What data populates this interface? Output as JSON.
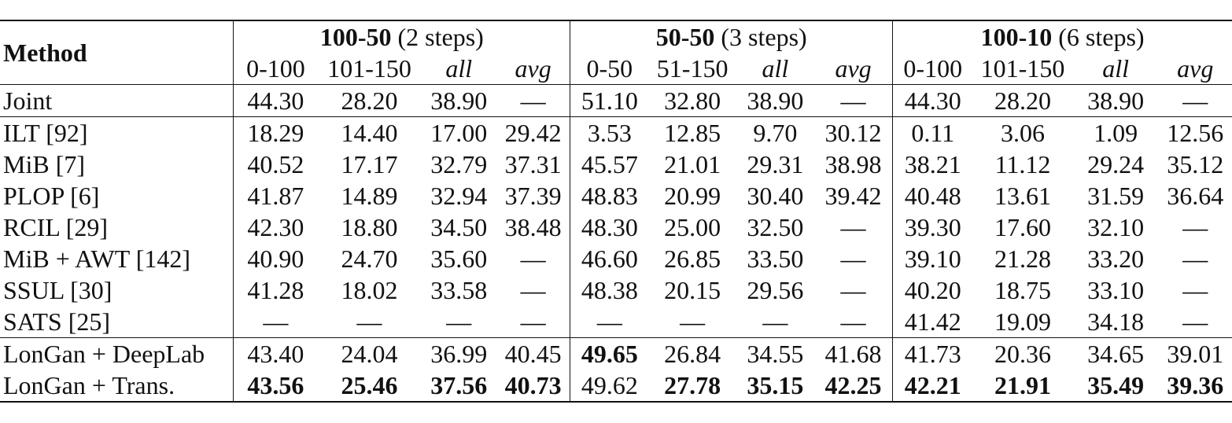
{
  "table": {
    "method_header": "Method",
    "groups": [
      {
        "bold": "100-50",
        "rest": " (2 steps)",
        "subheaders": [
          "0-100",
          "101-150",
          "all",
          "avg"
        ]
      },
      {
        "bold": "50-50",
        "rest": " (3 steps)",
        "subheaders": [
          "0-50",
          "51-150",
          "all",
          "avg"
        ]
      },
      {
        "bold": "100-10",
        "rest": " (6 steps)",
        "subheaders": [
          "0-100",
          "101-150",
          "all",
          "avg"
        ]
      }
    ],
    "rows": [
      {
        "method": "Joint",
        "values": [
          "44.30",
          "28.20",
          "38.90",
          "—",
          "51.10",
          "32.80",
          "38.90",
          "—",
          "44.30",
          "28.20",
          "38.90",
          "—"
        ]
      },
      {
        "method": "ILT [92]",
        "values": [
          "18.29",
          "14.40",
          "17.00",
          "29.42",
          "3.53",
          "12.85",
          "9.70",
          "30.12",
          "0.11",
          "3.06",
          "1.09",
          "12.56"
        ]
      },
      {
        "method": "MiB [7]",
        "values": [
          "40.52",
          "17.17",
          "32.79",
          "37.31",
          "45.57",
          "21.01",
          "29.31",
          "38.98",
          "38.21",
          "11.12",
          "29.24",
          "35.12"
        ]
      },
      {
        "method": "PLOP [6]",
        "values": [
          "41.87",
          "14.89",
          "32.94",
          "37.39",
          "48.83",
          "20.99",
          "30.40",
          "39.42",
          "40.48",
          "13.61",
          "31.59",
          "36.64"
        ]
      },
      {
        "method": "RCIL [29]",
        "values": [
          "42.30",
          "18.80",
          "34.50",
          "38.48",
          "48.30",
          "25.00",
          "32.50",
          "—",
          "39.30",
          "17.60",
          "32.10",
          "—"
        ]
      },
      {
        "method": "MiB + AWT [142]",
        "values": [
          "40.90",
          "24.70",
          "35.60",
          "—",
          "46.60",
          "26.85",
          "33.50",
          "—",
          "39.10",
          "21.28",
          "33.20",
          "—"
        ]
      },
      {
        "method": "SSUL [30]",
        "values": [
          "41.28",
          "18.02",
          "33.58",
          "—",
          "48.38",
          "20.15",
          "29.56",
          "—",
          "40.20",
          "18.75",
          "33.10",
          "—"
        ]
      },
      {
        "method": "SATS [25]",
        "values": [
          "—",
          "—",
          "—",
          "—",
          "—",
          "—",
          "—",
          "—",
          "41.42",
          "19.09",
          "34.18",
          "—"
        ]
      },
      {
        "method": "LonGan + DeepLab",
        "values": [
          "43.40",
          "24.04",
          "36.99",
          "40.45",
          "49.65",
          "26.84",
          "34.55",
          "41.68",
          "41.73",
          "20.36",
          "34.65",
          "39.01"
        ]
      },
      {
        "method": "LonGan + Trans.",
        "values": [
          "43.56",
          "25.46",
          "37.56",
          "40.73",
          "49.62",
          "27.78",
          "35.15",
          "42.25",
          "42.21",
          "21.91",
          "35.49",
          "39.36"
        ]
      }
    ]
  }
}
